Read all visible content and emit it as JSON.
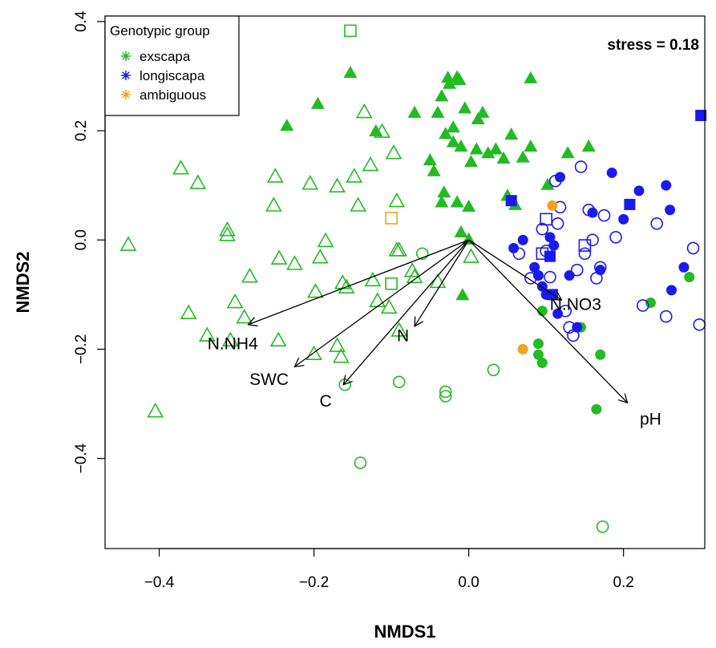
{
  "chart_data": {
    "type": "scatter",
    "title": "",
    "xlabel": "NMDS1",
    "ylabel": "NMDS2",
    "xlim": [
      -0.47,
      0.305
    ],
    "ylim": [
      -0.565,
      0.41
    ],
    "x_ticks": [
      -0.4,
      -0.2,
      0.0,
      0.2
    ],
    "x_tick_labels": [
      "−0.4",
      "−0.2",
      "0.0",
      "0.2"
    ],
    "y_ticks": [
      -0.4,
      -0.2,
      0.0,
      0.2,
      0.4
    ],
    "y_tick_labels": [
      "−0.4",
      "−0.2",
      "0.0",
      "0.2",
      "0.4"
    ],
    "stress_label": "stress = 0.18",
    "legend": {
      "title": "Genotypic group",
      "position": "top-left",
      "entries": [
        {
          "label": "exscapa",
          "color": "#22bb22"
        },
        {
          "label": "longiscapa",
          "color": "#1a1aee"
        },
        {
          "label": "ambiguous",
          "color": "#f5a020"
        }
      ]
    },
    "colors": {
      "exscapa": "#22bb22",
      "longiscapa": "#1a1aee",
      "ambiguous": "#f5a020"
    },
    "vectors": [
      {
        "label": "N.NH4",
        "x": -0.285,
        "y": -0.155
      },
      {
        "label": "SWC",
        "x": -0.225,
        "y": -0.232
      },
      {
        "label": "C",
        "x": -0.162,
        "y": -0.265
      },
      {
        "label": "N",
        "x": -0.07,
        "y": -0.158
      },
      {
        "label": "N.NO3",
        "x": 0.12,
        "y": -0.11
      },
      {
        "label": "pH",
        "x": 0.205,
        "y": -0.298
      }
    ],
    "series": [
      {
        "group": "exscapa",
        "shape": "triangle",
        "filled": false,
        "points": [
          [
            -0.44,
            -0.01
          ],
          [
            -0.405,
            -0.315
          ],
          [
            -0.372,
            0.13
          ],
          [
            -0.362,
            -0.135
          ],
          [
            -0.35,
            0.103
          ],
          [
            -0.338,
            -0.176
          ],
          [
            -0.312,
            0.017
          ],
          [
            -0.312,
            0.008
          ],
          [
            -0.308,
            -0.185
          ],
          [
            -0.302,
            -0.115
          ],
          [
            -0.29,
            -0.143
          ],
          [
            -0.283,
            -0.068
          ],
          [
            -0.25,
            0.115
          ],
          [
            -0.252,
            0.062
          ],
          [
            -0.245,
            -0.035
          ],
          [
            -0.246,
            -0.185
          ],
          [
            -0.225,
            -0.045
          ],
          [
            -0.205,
            0.102
          ],
          [
            -0.2,
            -0.21
          ],
          [
            -0.198,
            -0.096
          ],
          [
            -0.192,
            -0.033
          ],
          [
            -0.185,
            -0.003
          ],
          [
            -0.17,
            0.097
          ],
          [
            -0.17,
            -0.195
          ],
          [
            -0.165,
            -0.215
          ],
          [
            -0.163,
            -0.08
          ],
          [
            -0.158,
            -0.088
          ],
          [
            -0.148,
            0.115
          ],
          [
            -0.143,
            0.062
          ],
          [
            -0.135,
            0.233
          ],
          [
            -0.127,
            0.136
          ],
          [
            -0.124,
            -0.075
          ],
          [
            -0.118,
            -0.113
          ],
          [
            -0.112,
            0.197
          ],
          [
            -0.103,
            -0.125
          ],
          [
            -0.097,
            0.158
          ],
          [
            -0.093,
            0.07
          ],
          [
            -0.093,
            -0.02
          ],
          [
            -0.09,
            -0.167
          ],
          [
            -0.09,
            -0.02
          ],
          [
            -0.073,
            -0.058
          ],
          [
            -0.07,
            -0.069
          ],
          [
            -0.04,
            -0.078
          ],
          [
            0.003,
            -0.032
          ]
        ]
      },
      {
        "group": "exscapa",
        "shape": "triangle",
        "filled": true,
        "points": [
          [
            -0.235,
            0.208
          ],
          [
            -0.195,
            0.248
          ],
          [
            -0.153,
            0.305
          ],
          [
            -0.12,
            0.198
          ],
          [
            -0.07,
            0.232
          ],
          [
            -0.035,
            0.262
          ],
          [
            -0.04,
            0.232
          ],
          [
            -0.027,
            0.296
          ],
          [
            -0.025,
            0.285
          ],
          [
            -0.03,
            0.193
          ],
          [
            -0.02,
            0.178
          ],
          [
            -0.02,
            0.205
          ],
          [
            -0.045,
            0.125
          ],
          [
            -0.05,
            0.145
          ],
          [
            -0.032,
            0.086
          ],
          [
            -0.015,
            0.297
          ],
          [
            -0.012,
            0.292
          ],
          [
            -0.005,
            0.24
          ],
          [
            -0.01,
            0.17
          ],
          [
            0.003,
            0.142
          ],
          [
            0.0,
            0.06
          ],
          [
            0.012,
            0.22
          ],
          [
            0.018,
            0.232
          ],
          [
            0.01,
            0.165
          ],
          [
            0.025,
            0.158
          ],
          [
            0.035,
            0.165
          ],
          [
            0.045,
            0.148
          ],
          [
            0.055,
            0.192
          ],
          [
            0.07,
            0.15
          ],
          [
            0.08,
            0.295
          ],
          [
            0.08,
            0.17
          ],
          [
            0.05,
            0.08
          ],
          [
            0.06,
            0.063
          ],
          [
            0.102,
            0.1
          ],
          [
            0.128,
            0.158
          ],
          [
            0.155,
            0.17
          ],
          [
            -0.035,
            0.068
          ],
          [
            -0.015,
            0.068
          ],
          [
            0.0,
            -0.0
          ],
          [
            -0.01,
            0.013
          ],
          [
            -0.008,
            -0.102
          ]
        ]
      },
      {
        "group": "exscapa",
        "shape": "square",
        "filled": false,
        "points": [
          [
            -0.153,
            0.383
          ],
          [
            -0.1,
            -0.08
          ]
        ]
      },
      {
        "group": "exscapa",
        "shape": "circle",
        "filled": false,
        "points": [
          [
            -0.16,
            -0.265
          ],
          [
            -0.14,
            -0.408
          ],
          [
            -0.09,
            -0.26
          ],
          [
            -0.06,
            -0.025
          ],
          [
            -0.03,
            -0.278
          ],
          [
            -0.03,
            -0.286
          ],
          [
            0.032,
            -0.238
          ],
          [
            0.173,
            -0.525
          ]
        ]
      },
      {
        "group": "exscapa",
        "shape": "circle",
        "filled": true,
        "points": [
          [
            0.09,
            -0.19
          ],
          [
            0.09,
            -0.21
          ],
          [
            0.095,
            -0.225
          ],
          [
            0.095,
            -0.13
          ],
          [
            0.145,
            -0.16
          ],
          [
            0.165,
            -0.31
          ],
          [
            0.17,
            -0.21
          ],
          [
            0.235,
            -0.115
          ],
          [
            0.285,
            -0.068
          ]
        ]
      },
      {
        "group": "longiscapa",
        "shape": "circle",
        "filled": false,
        "points": [
          [
            0.065,
            -0.025
          ],
          [
            0.08,
            -0.07
          ],
          [
            0.095,
            0.02
          ],
          [
            0.1,
            -0.02
          ],
          [
            0.105,
            -0.068
          ],
          [
            0.112,
            0.108
          ],
          [
            0.115,
            0.03
          ],
          [
            0.118,
            0.06
          ],
          [
            0.125,
            -0.13
          ],
          [
            0.13,
            -0.16
          ],
          [
            0.135,
            -0.175
          ],
          [
            0.14,
            -0.055
          ],
          [
            0.145,
            0.134
          ],
          [
            0.15,
            -0.025
          ],
          [
            0.155,
            0.055
          ],
          [
            0.16,
            0.0
          ],
          [
            0.165,
            -0.07
          ],
          [
            0.17,
            -0.05
          ],
          [
            0.175,
            0.045
          ],
          [
            0.19,
            0.005
          ],
          [
            0.225,
            -0.12
          ],
          [
            0.243,
            0.03
          ],
          [
            0.255,
            -0.14
          ],
          [
            0.29,
            -0.015
          ],
          [
            0.298,
            -0.155
          ]
        ]
      },
      {
        "group": "longiscapa",
        "shape": "circle",
        "filled": true,
        "points": [
          [
            0.058,
            -0.015
          ],
          [
            0.07,
            0.0
          ],
          [
            0.085,
            -0.05
          ],
          [
            0.09,
            -0.065
          ],
          [
            0.095,
            -0.085
          ],
          [
            0.1,
            -0.1
          ],
          [
            0.105,
            0.005
          ],
          [
            0.11,
            -0.01
          ],
          [
            0.115,
            -0.135
          ],
          [
            0.118,
            0.115
          ],
          [
            0.13,
            -0.065
          ],
          [
            0.14,
            -0.16
          ],
          [
            0.16,
            0.05
          ],
          [
            0.17,
            -0.055
          ],
          [
            0.185,
            0.123
          ],
          [
            0.2,
            0.038
          ],
          [
            0.22,
            0.09
          ],
          [
            0.255,
            0.1
          ],
          [
            0.26,
            0.055
          ],
          [
            0.262,
            -0.092
          ],
          [
            0.278,
            -0.05
          ]
        ]
      },
      {
        "group": "longiscapa",
        "shape": "square",
        "filled": false,
        "points": [
          [
            0.095,
            -0.025
          ],
          [
            0.1,
            0.038
          ],
          [
            0.15,
            -0.01
          ]
        ]
      },
      {
        "group": "longiscapa",
        "shape": "square",
        "filled": true,
        "points": [
          [
            0.055,
            0.072
          ],
          [
            0.105,
            -0.03
          ],
          [
            0.108,
            -0.1
          ],
          [
            0.208,
            0.065
          ],
          [
            0.3,
            0.228
          ]
        ]
      },
      {
        "group": "ambiguous",
        "shape": "square",
        "filled": false,
        "points": [
          [
            -0.1,
            0.04
          ]
        ]
      },
      {
        "group": "ambiguous",
        "shape": "circle",
        "filled": true,
        "points": [
          [
            0.07,
            -0.2
          ],
          [
            0.108,
            0.063
          ]
        ]
      }
    ]
  }
}
